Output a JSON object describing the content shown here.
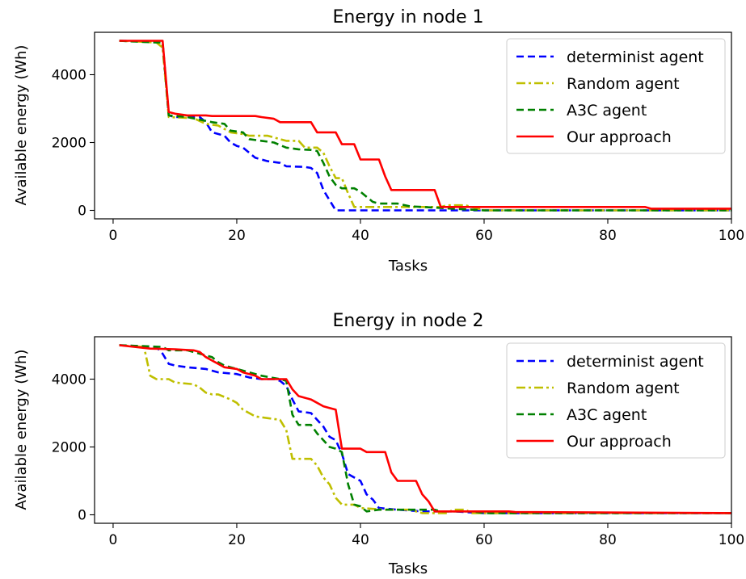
{
  "chart_data": [
    {
      "type": "line",
      "title": "Energy in node 1",
      "xlabel": "Tasks",
      "ylabel": "Available energy (Wh)",
      "xlim": [
        -3,
        100
      ],
      "ylim": [
        -250,
        5250
      ],
      "xticks": [
        0,
        20,
        40,
        60,
        80,
        100
      ],
      "yticks": [
        0,
        2000,
        4000
      ],
      "legend_position": "upper right",
      "series": [
        {
          "name": "determinist agent",
          "color": "#0000ff",
          "dash": "dashed",
          "points": [
            [
              1,
              5000
            ],
            [
              7,
              4980
            ],
            [
              8,
              4950
            ],
            [
              9,
              2800
            ],
            [
              10,
              2750
            ],
            [
              14,
              2750
            ],
            [
              15,
              2600
            ],
            [
              16,
              2300
            ],
            [
              18,
              2200
            ],
            [
              19,
              2000
            ],
            [
              20,
              1900
            ],
            [
              21,
              1850
            ],
            [
              22,
              1700
            ],
            [
              23,
              1550
            ],
            [
              25,
              1450
            ],
            [
              27,
              1400
            ],
            [
              28,
              1300
            ],
            [
              31,
              1280
            ],
            [
              32,
              1250
            ],
            [
              33,
              1100
            ],
            [
              34,
              600
            ],
            [
              35,
              300
            ],
            [
              36,
              0
            ],
            [
              53,
              0
            ],
            [
              100,
              0
            ]
          ]
        },
        {
          "name": "Random agent",
          "color": "#bfbf00",
          "dash": "dashdot",
          "points": [
            [
              1,
              5000
            ],
            [
              7,
              4950
            ],
            [
              8,
              4800
            ],
            [
              9,
              2750
            ],
            [
              13,
              2720
            ],
            [
              15,
              2550
            ],
            [
              17,
              2500
            ],
            [
              19,
              2300
            ],
            [
              21,
              2250
            ],
            [
              22,
              2200
            ],
            [
              25,
              2200
            ],
            [
              26,
              2150
            ],
            [
              28,
              2050
            ],
            [
              30,
              2050
            ],
            [
              31,
              1850
            ],
            [
              33,
              1850
            ],
            [
              34,
              1700
            ],
            [
              35,
              1300
            ],
            [
              36,
              950
            ],
            [
              37,
              950
            ],
            [
              38,
              500
            ],
            [
              39,
              100
            ],
            [
              53,
              100
            ],
            [
              54,
              150
            ],
            [
              57,
              150
            ],
            [
              60,
              0
            ],
            [
              100,
              0
            ]
          ]
        },
        {
          "name": "A3C agent",
          "color": "#008000",
          "dash": "dashed",
          "points": [
            [
              1,
              5000
            ],
            [
              7,
              4950
            ],
            [
              8,
              4950
            ],
            [
              9,
              2800
            ],
            [
              12,
              2750
            ],
            [
              16,
              2600
            ],
            [
              18,
              2550
            ],
            [
              19,
              2350
            ],
            [
              21,
              2300
            ],
            [
              22,
              2100
            ],
            [
              24,
              2050
            ],
            [
              26,
              2000
            ],
            [
              28,
              1850
            ],
            [
              30,
              1800
            ],
            [
              32,
              1780
            ],
            [
              33,
              1750
            ],
            [
              34,
              1400
            ],
            [
              35,
              1000
            ],
            [
              36,
              750
            ],
            [
              37,
              650
            ],
            [
              39,
              650
            ],
            [
              40,
              550
            ],
            [
              41,
              400
            ],
            [
              42,
              250
            ],
            [
              43,
              200
            ],
            [
              46,
              200
            ],
            [
              48,
              120
            ],
            [
              50,
              100
            ],
            [
              55,
              50
            ],
            [
              60,
              0
            ],
            [
              100,
              0
            ]
          ]
        },
        {
          "name": "Our approach",
          "color": "#ff0000",
          "dash": "solid",
          "points": [
            [
              1,
              5000
            ],
            [
              8,
              5000
            ],
            [
              9,
              2900
            ],
            [
              10,
              2850
            ],
            [
              12,
              2800
            ],
            [
              15,
              2800
            ],
            [
              16,
              2780
            ],
            [
              23,
              2780
            ],
            [
              24,
              2750
            ],
            [
              26,
              2700
            ],
            [
              27,
              2600
            ],
            [
              32,
              2600
            ],
            [
              33,
              2300
            ],
            [
              36,
              2300
            ],
            [
              37,
              1950
            ],
            [
              39,
              1950
            ],
            [
              40,
              1500
            ],
            [
              43,
              1500
            ],
            [
              44,
              1000
            ],
            [
              45,
              600
            ],
            [
              52,
              600
            ],
            [
              53,
              100
            ],
            [
              60,
              100
            ],
            [
              86,
              100
            ],
            [
              87,
              50
            ],
            [
              100,
              50
            ]
          ]
        }
      ]
    },
    {
      "type": "line",
      "title": "Energy in node 2",
      "xlabel": "Tasks",
      "ylabel": "Available energy (Wh)",
      "xlim": [
        -3,
        100
      ],
      "ylim": [
        -250,
        5250
      ],
      "xticks": [
        0,
        20,
        40,
        60,
        80,
        100
      ],
      "yticks": [
        0,
        2000,
        4000
      ],
      "legend_position": "upper right",
      "series": [
        {
          "name": "determinist agent",
          "color": "#0000ff",
          "dash": "dashed",
          "points": [
            [
              1,
              5000
            ],
            [
              7,
              4950
            ],
            [
              8,
              4750
            ],
            [
              9,
              4450
            ],
            [
              10,
              4400
            ],
            [
              12,
              4350
            ],
            [
              15,
              4300
            ],
            [
              17,
              4200
            ],
            [
              20,
              4150
            ],
            [
              22,
              4050
            ],
            [
              24,
              4000
            ],
            [
              26,
              4000
            ],
            [
              27,
              3950
            ],
            [
              28,
              3800
            ],
            [
              29,
              3400
            ],
            [
              30,
              3050
            ],
            [
              32,
              3000
            ],
            [
              33,
              2800
            ],
            [
              34,
              2600
            ],
            [
              35,
              2300
            ],
            [
              36,
              2200
            ],
            [
              37,
              1800
            ],
            [
              38,
              1200
            ],
            [
              39,
              1100
            ],
            [
              40,
              1000
            ],
            [
              41,
              600
            ],
            [
              42,
              450
            ],
            [
              43,
              200
            ],
            [
              46,
              150
            ],
            [
              50,
              100
            ],
            [
              55,
              100
            ],
            [
              60,
              50
            ],
            [
              100,
              50
            ]
          ]
        },
        {
          "name": "Random agent",
          "color": "#bfbf00",
          "dash": "dashdot",
          "points": [
            [
              1,
              5000
            ],
            [
              5,
              4950
            ],
            [
              6,
              4100
            ],
            [
              7,
              4000
            ],
            [
              9,
              4000
            ],
            [
              10,
              3900
            ],
            [
              13,
              3850
            ],
            [
              14,
              3750
            ],
            [
              15,
              3600
            ],
            [
              16,
              3550
            ],
            [
              17,
              3550
            ],
            [
              19,
              3400
            ],
            [
              20,
              3300
            ],
            [
              21,
              3100
            ],
            [
              22,
              3000
            ],
            [
              23,
              2900
            ],
            [
              25,
              2850
            ],
            [
              27,
              2800
            ],
            [
              28,
              2500
            ],
            [
              29,
              1650
            ],
            [
              32,
              1650
            ],
            [
              33,
              1450
            ],
            [
              34,
              1100
            ],
            [
              35,
              900
            ],
            [
              36,
              500
            ],
            [
              37,
              300
            ],
            [
              39,
              300
            ],
            [
              40,
              200
            ],
            [
              44,
              150
            ],
            [
              48,
              150
            ],
            [
              50,
              50
            ],
            [
              54,
              50
            ],
            [
              55,
              150
            ],
            [
              57,
              150
            ],
            [
              58,
              50
            ],
            [
              100,
              50
            ]
          ]
        },
        {
          "name": "A3C agent",
          "color": "#008000",
          "dash": "dashed",
          "points": [
            [
              1,
              5000
            ],
            [
              8,
              4950
            ],
            [
              9,
              4850
            ],
            [
              12,
              4850
            ],
            [
              14,
              4750
            ],
            [
              16,
              4650
            ],
            [
              17,
              4500
            ],
            [
              18,
              4400
            ],
            [
              20,
              4300
            ],
            [
              22,
              4200
            ],
            [
              24,
              4100
            ],
            [
              27,
              4000
            ],
            [
              28,
              3950
            ],
            [
              29,
              2950
            ],
            [
              30,
              2650
            ],
            [
              32,
              2650
            ],
            [
              33,
              2400
            ],
            [
              34,
              2200
            ],
            [
              35,
              2000
            ],
            [
              36,
              1950
            ],
            [
              37,
              1850
            ],
            [
              38,
              900
            ],
            [
              39,
              300
            ],
            [
              40,
              250
            ],
            [
              41,
              100
            ],
            [
              43,
              150
            ],
            [
              52,
              150
            ],
            [
              53,
              100
            ],
            [
              58,
              100
            ],
            [
              60,
              50
            ],
            [
              100,
              50
            ]
          ]
        },
        {
          "name": "Our approach",
          "color": "#ff0000",
          "dash": "solid",
          "points": [
            [
              1,
              5000
            ],
            [
              6,
              4900
            ],
            [
              10,
              4880
            ],
            [
              12,
              4860
            ],
            [
              13,
              4850
            ],
            [
              14,
              4800
            ],
            [
              15,
              4650
            ],
            [
              17,
              4450
            ],
            [
              18,
              4350
            ],
            [
              20,
              4300
            ],
            [
              21,
              4200
            ],
            [
              23,
              4100
            ],
            [
              24,
              4000
            ],
            [
              28,
              4000
            ],
            [
              29,
              3700
            ],
            [
              30,
              3500
            ],
            [
              32,
              3400
            ],
            [
              34,
              3200
            ],
            [
              35,
              3150
            ],
            [
              36,
              3100
            ],
            [
              37,
              1950
            ],
            [
              40,
              1950
            ],
            [
              41,
              1850
            ],
            [
              44,
              1850
            ],
            [
              45,
              1250
            ],
            [
              46,
              1000
            ],
            [
              49,
              1000
            ],
            [
              50,
              600
            ],
            [
              51,
              400
            ],
            [
              52,
              100
            ],
            [
              60,
              100
            ],
            [
              64,
              100
            ],
            [
              65,
              80
            ],
            [
              100,
              50
            ]
          ]
        }
      ]
    }
  ]
}
